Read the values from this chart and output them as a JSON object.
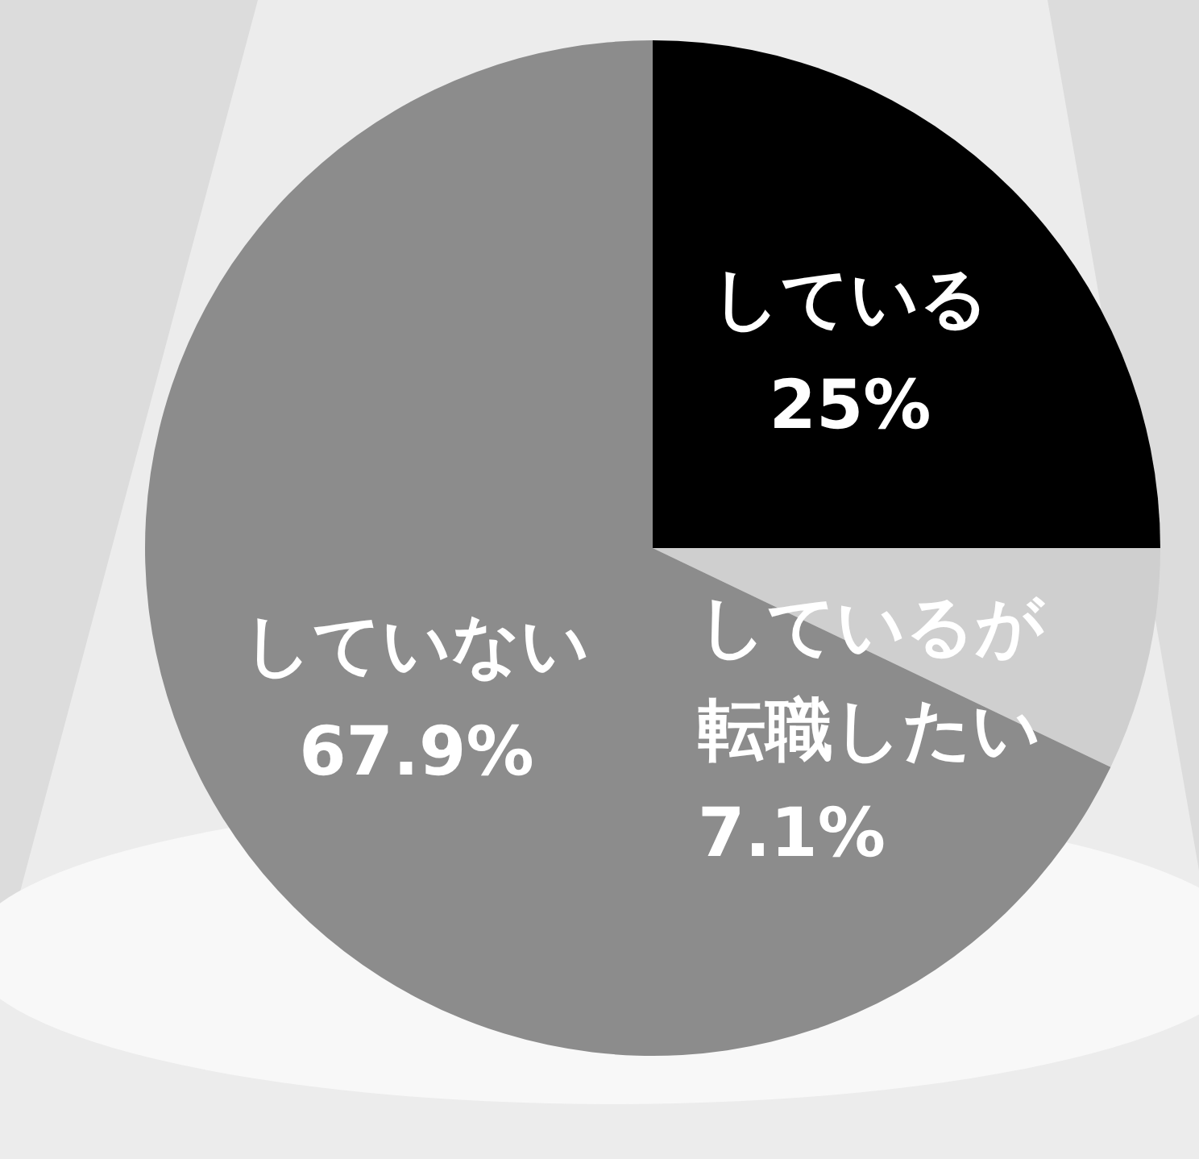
{
  "chart_data": {
    "type": "pie",
    "categories": [
      "している",
      "しているが転職したい",
      "していない"
    ],
    "values": [
      25,
      7.1,
      67.9
    ],
    "colors": [
      "#000000",
      "#cfcfcf",
      "#8c8c8c"
    ],
    "value_labels": [
      "25%",
      "7.1%",
      "67.9%"
    ]
  }
}
